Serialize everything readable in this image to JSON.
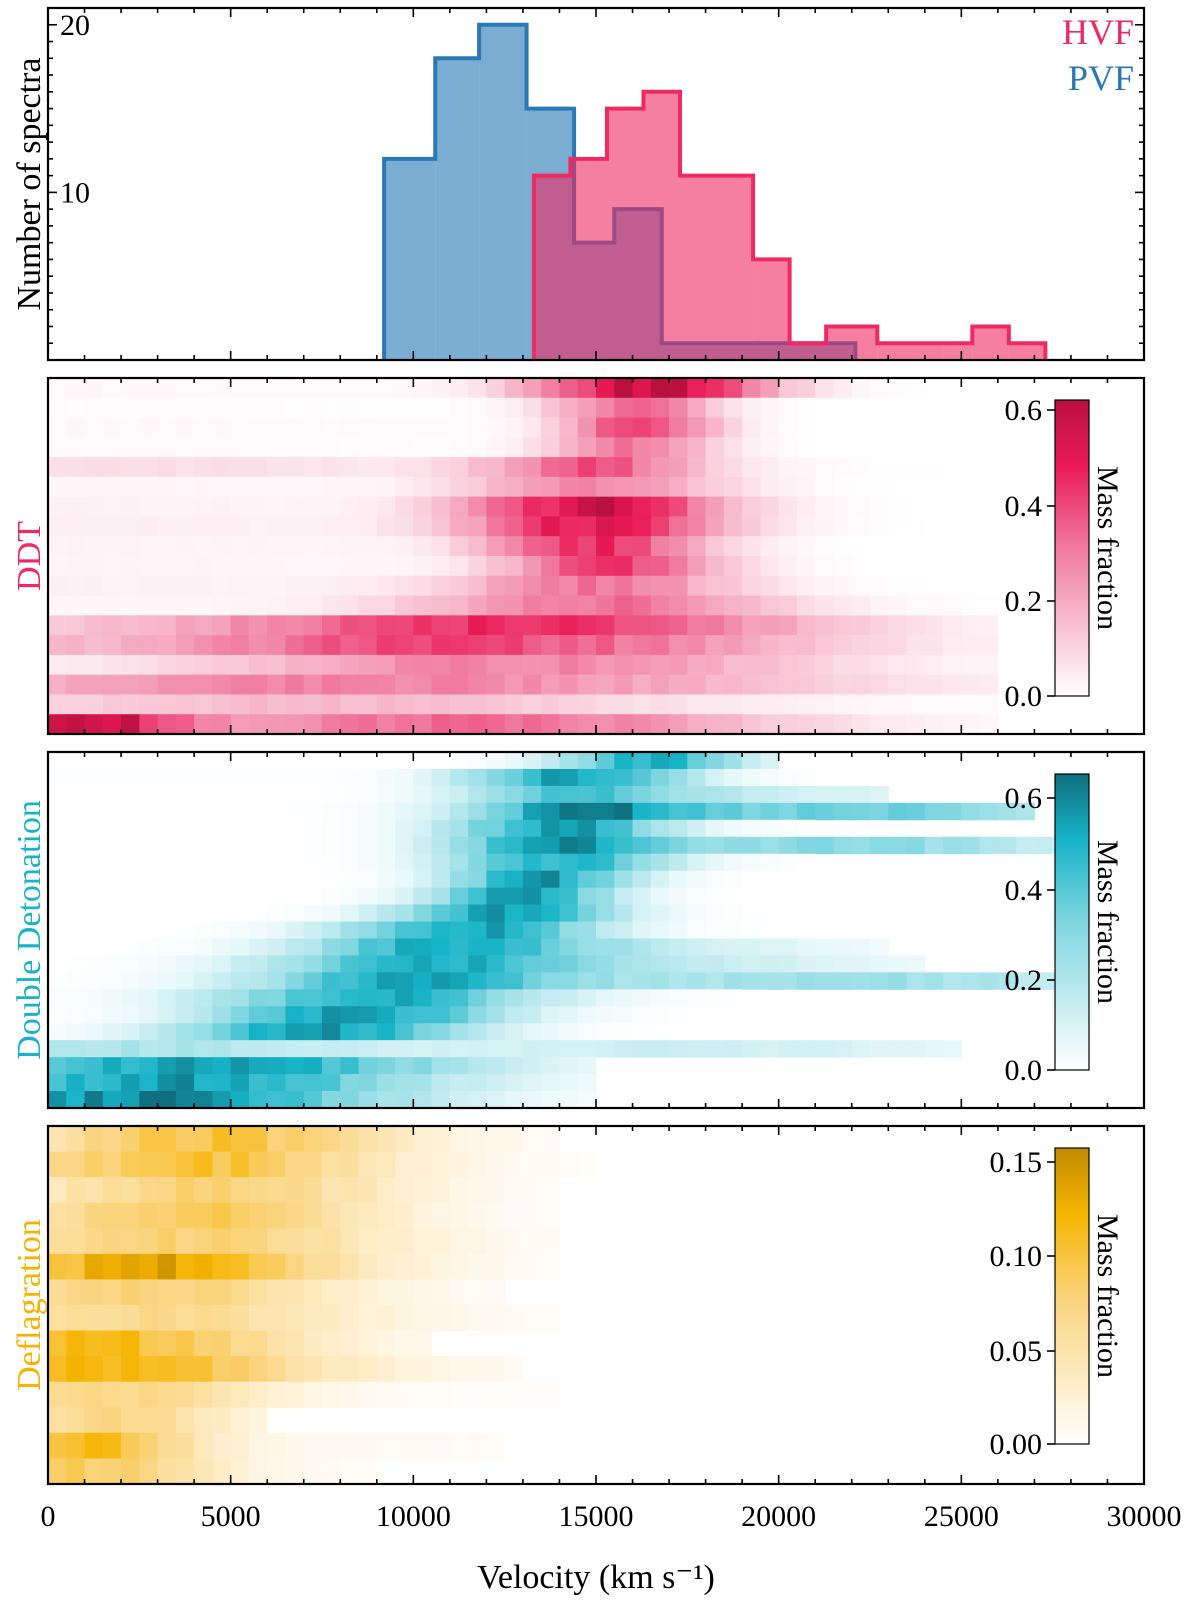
{
  "colors": {
    "hvf": "#ef2a63",
    "pvf": "#2a79b5",
    "ddt": "#d5154e",
    "double_detonation": "#17b3c7",
    "deflagration": "#f6b400"
  },
  "chart_data": [
    {
      "type": "histogram",
      "ylabel": "Number of spectra",
      "xlim": [
        0,
        30000
      ],
      "ylim": [
        0,
        21
      ],
      "yticks": [
        10,
        20
      ],
      "legend": {
        "placement": "top-right",
        "entries": [
          "HVF",
          "PVF"
        ]
      },
      "series": [
        {
          "name": "HVF",
          "bin_edges": [
            13300,
            14300,
            15300,
            16300,
            17300,
            18300,
            19300,
            20300,
            21300,
            22700,
            24500,
            25300,
            26300,
            27300
          ],
          "counts": [
            11,
            12,
            15,
            16,
            11,
            11,
            6,
            1,
            2,
            1,
            1,
            2,
            1
          ]
        },
        {
          "name": "PVF",
          "bin_edges": [
            9200,
            10600,
            11800,
            13100,
            14400,
            15500,
            16800,
            22100
          ],
          "counts": [
            12,
            18,
            20,
            15,
            7,
            9,
            1
          ]
        }
      ]
    },
    {
      "type": "heatmap",
      "ylabel": "DDT",
      "colorbar_label": "Mass fraction",
      "colorbar_ticks": [
        "0.0",
        "0.2",
        "0.4",
        "0.6"
      ],
      "clim": [
        0,
        0.62
      ],
      "xlim": [
        0,
        30000
      ],
      "bin_width": 500,
      "rows": [
        {
          "extent": [
            0,
            26000
          ],
          "peaks": [
            {
              "v": 16500,
              "w": 3200,
              "a": 0.58
            }
          ],
          "bg": 0.04
        },
        {
          "extent": [
            0,
            26000
          ],
          "peaks": [
            {
              "v": 16000,
              "w": 2200,
              "a": 0.35
            }
          ],
          "bg": 0.02
        },
        {
          "extent": [
            0,
            26500
          ],
          "peaks": [
            {
              "v": 16200,
              "w": 2000,
              "a": 0.45
            }
          ],
          "bg": 0.04
        },
        {
          "extent": [
            0,
            25500
          ],
          "peaks": [
            {
              "v": 16000,
              "w": 2200,
              "a": 0.3
            }
          ],
          "bg": 0.03
        },
        {
          "extent": [
            0,
            27000
          ],
          "peaks": [
            {
              "v": 15000,
              "w": 3000,
              "a": 0.35
            }
          ],
          "bg": 0.2
        },
        {
          "extent": [
            0,
            26000
          ],
          "peaks": [
            {
              "v": 15000,
              "w": 3500,
              "a": 0.28
            }
          ],
          "bg": 0.05
        },
        {
          "extent": [
            0,
            26000
          ],
          "peaks": [
            {
              "v": 15000,
              "w": 3500,
              "a": 0.55
            }
          ],
          "bg": 0.08
        },
        {
          "extent": [
            0,
            26000
          ],
          "peaks": [
            {
              "v": 15000,
              "w": 3500,
              "a": 0.5
            }
          ],
          "bg": 0.1
        },
        {
          "extent": [
            0,
            26000
          ],
          "peaks": [
            {
              "v": 15000,
              "w": 3000,
              "a": 0.45
            }
          ],
          "bg": 0.07
        },
        {
          "extent": [
            0,
            26000
          ],
          "peaks": [
            {
              "v": 15500,
              "w": 3000,
              "a": 0.4
            }
          ],
          "bg": 0.06
        },
        {
          "extent": [
            0,
            26000
          ],
          "peaks": [
            {
              "v": 15000,
              "w": 4000,
              "a": 0.3
            }
          ],
          "bg": 0.08
        },
        {
          "extent": [
            0,
            26000
          ],
          "peaks": [
            {
              "v": 15000,
              "w": 5000,
              "a": 0.32
            }
          ],
          "bg": 0.05
        },
        {
          "extent": [
            0,
            26000
          ],
          "peaks": [
            {
              "v": 13000,
              "w": 8000,
              "a": 0.42
            }
          ],
          "bg": 0.25
        },
        {
          "extent": [
            0,
            26000
          ],
          "peaks": [
            {
              "v": 12000,
              "w": 9000,
              "a": 0.36
            }
          ],
          "bg": 0.22
        },
        {
          "extent": [
            0,
            26000
          ],
          "peaks": [
            {
              "v": 13000,
              "w": 8000,
              "a": 0.28
            }
          ],
          "bg": 0.06
        },
        {
          "extent": [
            0,
            26000
          ],
          "peaks": [
            {
              "v": 10000,
              "w": 12000,
              "a": 0.25
            }
          ],
          "bg": 0.15
        },
        {
          "extent": [
            0,
            26000
          ],
          "peaks": [
            {
              "v": 8000,
              "w": 10000,
              "a": 0.15
            }
          ],
          "bg": 0.03
        },
        {
          "extent": [
            0,
            26000
          ],
          "peaks": [
            {
              "v": 1000,
              "w": 2500,
              "a": 0.5
            },
            {
              "v": 12000,
              "w": 8000,
              "a": 0.3
            }
          ],
          "bg": 0.2
        }
      ]
    },
    {
      "type": "heatmap",
      "ylabel": "Double Detonation",
      "colorbar_label": "Mass fraction",
      "colorbar_ticks": [
        "0.0",
        "0.2",
        "0.4",
        "0.6"
      ],
      "clim": [
        0,
        0.65
      ],
      "xlim": [
        0,
        30000
      ],
      "bin_width": 500,
      "rows": [
        {
          "extent": [
            0,
            20000
          ],
          "peaks": [
            {
              "v": 16500,
              "w": 2500,
              "a": 0.5
            }
          ],
          "bg": 0.0
        },
        {
          "extent": [
            0,
            21000
          ],
          "peaks": [
            {
              "v": 14500,
              "w": 3000,
              "a": 0.55
            }
          ],
          "bg": 0.01
        },
        {
          "extent": [
            0,
            23000
          ],
          "peaks": [
            {
              "v": 14500,
              "w": 3000,
              "a": 0.4
            },
            {
              "v": 20000,
              "w": 6000,
              "a": 0.12
            }
          ],
          "bg": 0.0
        },
        {
          "extent": [
            0,
            27000
          ],
          "peaks": [
            {
              "v": 14500,
              "w": 3000,
              "a": 0.5
            },
            {
              "v": 22000,
              "w": 7000,
              "a": 0.35
            }
          ],
          "bg": 0.0
        },
        {
          "extent": [
            0,
            24000
          ],
          "peaks": [
            {
              "v": 14000,
              "w": 3000,
              "a": 0.55
            }
          ],
          "bg": 0.0
        },
        {
          "extent": [
            0,
            28000
          ],
          "peaks": [
            {
              "v": 14000,
              "w": 3000,
              "a": 0.55
            },
            {
              "v": 22000,
              "w": 6000,
              "a": 0.3
            }
          ],
          "bg": 0.0
        },
        {
          "extent": [
            0,
            22000
          ],
          "peaks": [
            {
              "v": 14000,
              "w": 3000,
              "a": 0.5
            }
          ],
          "bg": 0.0
        },
        {
          "extent": [
            0,
            22000
          ],
          "peaks": [
            {
              "v": 13500,
              "w": 2500,
              "a": 0.55
            }
          ],
          "bg": 0.0
        },
        {
          "extent": [
            0,
            22000
          ],
          "peaks": [
            {
              "v": 13000,
              "w": 2500,
              "a": 0.55
            }
          ],
          "bg": 0.0
        },
        {
          "extent": [
            0,
            22000
          ],
          "peaks": [
            {
              "v": 12500,
              "w": 3000,
              "a": 0.55
            }
          ],
          "bg": 0.0
        },
        {
          "extent": [
            0,
            22000
          ],
          "peaks": [
            {
              "v": 11500,
              "w": 3500,
              "a": 0.55
            }
          ],
          "bg": 0.0
        },
        {
          "extent": [
            0,
            23000
          ],
          "peaks": [
            {
              "v": 11000,
              "w": 4000,
              "a": 0.5
            },
            {
              "v": 17000,
              "w": 6000,
              "a": 0.1
            }
          ],
          "bg": 0.0
        },
        {
          "extent": [
            0,
            24000
          ],
          "peaks": [
            {
              "v": 10500,
              "w": 4500,
              "a": 0.5
            },
            {
              "v": 18000,
              "w": 6000,
              "a": 0.12
            }
          ],
          "bg": 0.0
        },
        {
          "extent": [
            0,
            28000
          ],
          "peaks": [
            {
              "v": 10000,
              "w": 4500,
              "a": 0.5
            },
            {
              "v": 22000,
              "w": 8000,
              "a": 0.25
            }
          ],
          "bg": 0.0
        },
        {
          "extent": [
            0,
            23000
          ],
          "peaks": [
            {
              "v": 9000,
              "w": 4500,
              "a": 0.5
            }
          ],
          "bg": 0.0
        },
        {
          "extent": [
            0,
            23000
          ],
          "peaks": [
            {
              "v": 8500,
              "w": 4000,
              "a": 0.55
            }
          ],
          "bg": 0.0
        },
        {
          "extent": [
            0,
            23000
          ],
          "peaks": [
            {
              "v": 7500,
              "w": 4000,
              "a": 0.55
            }
          ],
          "bg": 0.0
        },
        {
          "extent": [
            0,
            25000
          ],
          "peaks": [
            {
              "v": 1500,
              "w": 8000,
              "a": 0.2
            },
            {
              "v": 18000,
              "w": 8000,
              "a": 0.12
            }
          ],
          "bg": 0.02
        },
        {
          "extent": [
            0,
            15000
          ],
          "peaks": [
            {
              "v": 4500,
              "w": 7000,
              "a": 0.55
            }
          ],
          "bg": 0.0
        },
        {
          "extent": [
            0,
            15000
          ],
          "peaks": [
            {
              "v": 3500,
              "w": 7000,
              "a": 0.55
            }
          ],
          "bg": 0.0
        },
        {
          "extent": [
            0,
            15000
          ],
          "peaks": [
            {
              "v": 2500,
              "w": 7000,
              "a": 0.6
            }
          ],
          "bg": 0.0
        }
      ]
    },
    {
      "type": "heatmap",
      "ylabel": "Deflagration",
      "xlabel": "Velocity (km s⁻¹)",
      "colorbar_label": "Mass fraction",
      "colorbar_ticks": [
        "0.00",
        "0.05",
        "0.10",
        "0.15"
      ],
      "clim": [
        0,
        0.155
      ],
      "xlim": [
        0,
        30000
      ],
      "xticks": [
        0,
        5000,
        10000,
        15000,
        20000,
        25000,
        30000
      ],
      "bin_width": 500,
      "rows": [
        {
          "extent": [
            0,
            14000
          ],
          "peaks": [
            {
              "v": 4500,
              "w": 5000,
              "a": 0.09
            }
          ],
          "bg": 0.02
        },
        {
          "extent": [
            0,
            15000
          ],
          "peaks": [
            {
              "v": 4000,
              "w": 5000,
              "a": 0.09
            }
          ],
          "bg": 0.03
        },
        {
          "extent": [
            0,
            14000
          ],
          "peaks": [
            {
              "v": 4500,
              "w": 5000,
              "a": 0.07
            }
          ],
          "bg": 0.02
        },
        {
          "extent": [
            0,
            14000
          ],
          "peaks": [
            {
              "v": 4000,
              "w": 5000,
              "a": 0.08
            }
          ],
          "bg": 0.02
        },
        {
          "extent": [
            0,
            14000
          ],
          "peaks": [
            {
              "v": 3500,
              "w": 6000,
              "a": 0.07
            }
          ],
          "bg": 0.02
        },
        {
          "extent": [
            0,
            14000
          ],
          "peaks": [
            {
              "v": 3000,
              "w": 5000,
              "a": 0.12
            }
          ],
          "bg": 0.03
        },
        {
          "extent": [
            0,
            12500
          ],
          "peaks": [
            {
              "v": 3000,
              "w": 5000,
              "a": 0.07
            }
          ],
          "bg": 0.02
        },
        {
          "extent": [
            0,
            14000
          ],
          "peaks": [
            {
              "v": 2500,
              "w": 6000,
              "a": 0.06
            }
          ],
          "bg": 0.02
        },
        {
          "extent": [
            0,
            10500
          ],
          "peaks": [
            {
              "v": 1500,
              "w": 5000,
              "a": 0.1
            }
          ],
          "bg": 0.03
        },
        {
          "extent": [
            0,
            13000
          ],
          "peaks": [
            {
              "v": 1500,
              "w": 6000,
              "a": 0.1
            }
          ],
          "bg": 0.03
        },
        {
          "extent": [
            0,
            14000
          ],
          "peaks": [
            {
              "v": 2000,
              "w": 4000,
              "a": 0.06
            }
          ],
          "bg": 0.02
        },
        {
          "extent": [
            0,
            6000
          ],
          "peaks": [
            {
              "v": 2000,
              "w": 3000,
              "a": 0.06
            }
          ],
          "bg": 0.02
        },
        {
          "extent": [
            0,
            12500
          ],
          "peaks": [
            {
              "v": 1000,
              "w": 3000,
              "a": 0.1
            }
          ],
          "bg": 0.03
        },
        {
          "extent": [
            0,
            9000
          ],
          "peaks": [
            {
              "v": 1500,
              "w": 3000,
              "a": 0.08
            }
          ],
          "bg": 0.02
        }
      ]
    }
  ]
}
